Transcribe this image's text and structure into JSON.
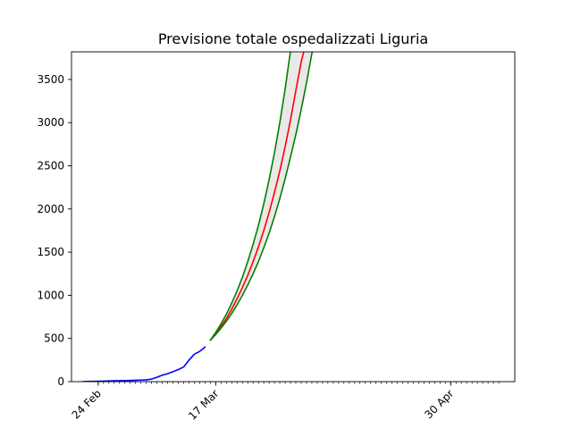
{
  "chart_data": {
    "type": "line",
    "title": "Previsione totale ospedalizzati Liguria",
    "xlabel": "",
    "ylabel": "",
    "x_start": "2020-02-21",
    "xlim": [
      "2020-02-19",
      "2020-05-12"
    ],
    "ylim": [
      0,
      3820
    ],
    "x_ticks": [
      {
        "date": "2020-02-24",
        "label": "24 Feb"
      },
      {
        "date": "2020-03-17",
        "label": "17 Mar"
      },
      {
        "date": "2020-04-30",
        "label": "30 Apr"
      }
    ],
    "y_ticks": [
      0,
      500,
      1000,
      1500,
      2000,
      2500,
      3000,
      3500
    ],
    "grid": false,
    "legend": "none",
    "minor_ticks": "daily",
    "series": [
      {
        "role": "observed",
        "color": "#0000ff",
        "points": [
          [
            "2020-02-21",
            0
          ],
          [
            "2020-02-22",
            2
          ],
          [
            "2020-02-23",
            3
          ],
          [
            "2020-02-24",
            4
          ],
          [
            "2020-02-25",
            6
          ],
          [
            "2020-02-26",
            8
          ],
          [
            "2020-02-27",
            10
          ],
          [
            "2020-02-28",
            11
          ],
          [
            "2020-02-29",
            12
          ],
          [
            "2020-03-01",
            14
          ],
          [
            "2020-03-02",
            16
          ],
          [
            "2020-03-03",
            18
          ],
          [
            "2020-03-04",
            20
          ],
          [
            "2020-03-05",
            30
          ],
          [
            "2020-03-06",
            50
          ],
          [
            "2020-03-07",
            75
          ],
          [
            "2020-03-08",
            92
          ],
          [
            "2020-03-09",
            115
          ],
          [
            "2020-03-10",
            140
          ],
          [
            "2020-03-11",
            170
          ],
          [
            "2020-03-12",
            250
          ],
          [
            "2020-03-13",
            318
          ],
          [
            "2020-03-14",
            350
          ],
          [
            "2020-03-15",
            400
          ]
        ]
      },
      {
        "role": "forecast",
        "color": "#ff0000",
        "points": [
          [
            "2020-03-16",
            480
          ],
          [
            "2020-03-17",
            555
          ],
          [
            "2020-03-18",
            640
          ],
          [
            "2020-03-19",
            730
          ],
          [
            "2020-03-20",
            840
          ],
          [
            "2020-03-21",
            960
          ],
          [
            "2020-03-22",
            1090
          ],
          [
            "2020-03-23",
            1230
          ],
          [
            "2020-03-24",
            1390
          ],
          [
            "2020-03-25",
            1560
          ],
          [
            "2020-03-26",
            1750
          ],
          [
            "2020-03-27",
            1960
          ],
          [
            "2020-03-28",
            2190
          ],
          [
            "2020-03-29",
            2440
          ],
          [
            "2020-03-30",
            2720
          ],
          [
            "2020-03-31",
            3030
          ],
          [
            "2020-04-01",
            3370
          ],
          [
            "2020-04-02",
            3700
          ],
          [
            "2020-04-03",
            3950
          ]
        ]
      },
      {
        "role": "upper-bound",
        "color": "#008000",
        "points": [
          [
            "2020-03-16",
            480
          ],
          [
            "2020-03-17",
            570
          ],
          [
            "2020-03-18",
            670
          ],
          [
            "2020-03-19",
            780
          ],
          [
            "2020-03-20",
            910
          ],
          [
            "2020-03-21",
            1050
          ],
          [
            "2020-03-22",
            1210
          ],
          [
            "2020-03-23",
            1390
          ],
          [
            "2020-03-24",
            1590
          ],
          [
            "2020-03-25",
            1810
          ],
          [
            "2020-03-26",
            2060
          ],
          [
            "2020-03-27",
            2340
          ],
          [
            "2020-03-28",
            2650
          ],
          [
            "2020-03-29",
            3000
          ],
          [
            "2020-03-30",
            3390
          ],
          [
            "2020-03-31",
            3830
          ],
          [
            "2020-04-01",
            4000
          ]
        ]
      },
      {
        "role": "lower-bound",
        "color": "#008000",
        "points": [
          [
            "2020-03-16",
            480
          ],
          [
            "2020-03-17",
            545
          ],
          [
            "2020-03-18",
            620
          ],
          [
            "2020-03-19",
            700
          ],
          [
            "2020-03-20",
            790
          ],
          [
            "2020-03-21",
            890
          ],
          [
            "2020-03-22",
            1000
          ],
          [
            "2020-03-23",
            1120
          ],
          [
            "2020-03-24",
            1250
          ],
          [
            "2020-03-25",
            1390
          ],
          [
            "2020-03-26",
            1550
          ],
          [
            "2020-03-27",
            1720
          ],
          [
            "2020-03-28",
            1910
          ],
          [
            "2020-03-29",
            2120
          ],
          [
            "2020-03-30",
            2350
          ],
          [
            "2020-03-31",
            2600
          ],
          [
            "2020-04-01",
            2860
          ],
          [
            "2020-04-02",
            3150
          ],
          [
            "2020-04-03",
            3460
          ],
          [
            "2020-04-04",
            3800
          ],
          [
            "2020-04-05",
            4000
          ]
        ]
      }
    ],
    "band": {
      "between": [
        "lower-bound",
        "upper-bound"
      ],
      "color": "#d3d3d3"
    }
  }
}
